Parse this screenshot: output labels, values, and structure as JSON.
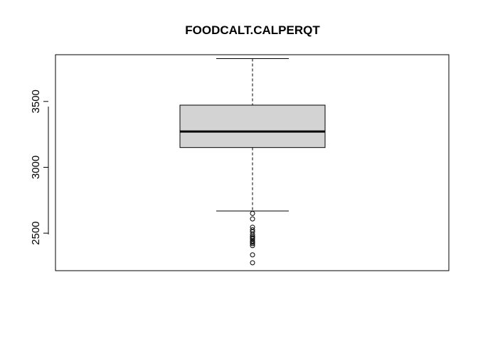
{
  "chart_data": {
    "type": "boxplot",
    "title": "FOODCALT.CALPERQT",
    "xlabel": "",
    "ylabel": "",
    "ylim": [
      2215,
      3855
    ],
    "yticks": [
      2500,
      3000,
      3500
    ],
    "grid": false,
    "box": {
      "whisker_low": 2668,
      "q1": 3150,
      "median": 3272,
      "q3": 3472,
      "whisker_high": 3825
    },
    "outliers": [
      2650,
      2608,
      2545,
      2525,
      2510,
      2490,
      2475,
      2465,
      2455,
      2440,
      2430,
      2420,
      2405,
      2335,
      2275
    ],
    "colors": {
      "box_fill": "#d3d3d3",
      "stroke": "#000000"
    }
  }
}
